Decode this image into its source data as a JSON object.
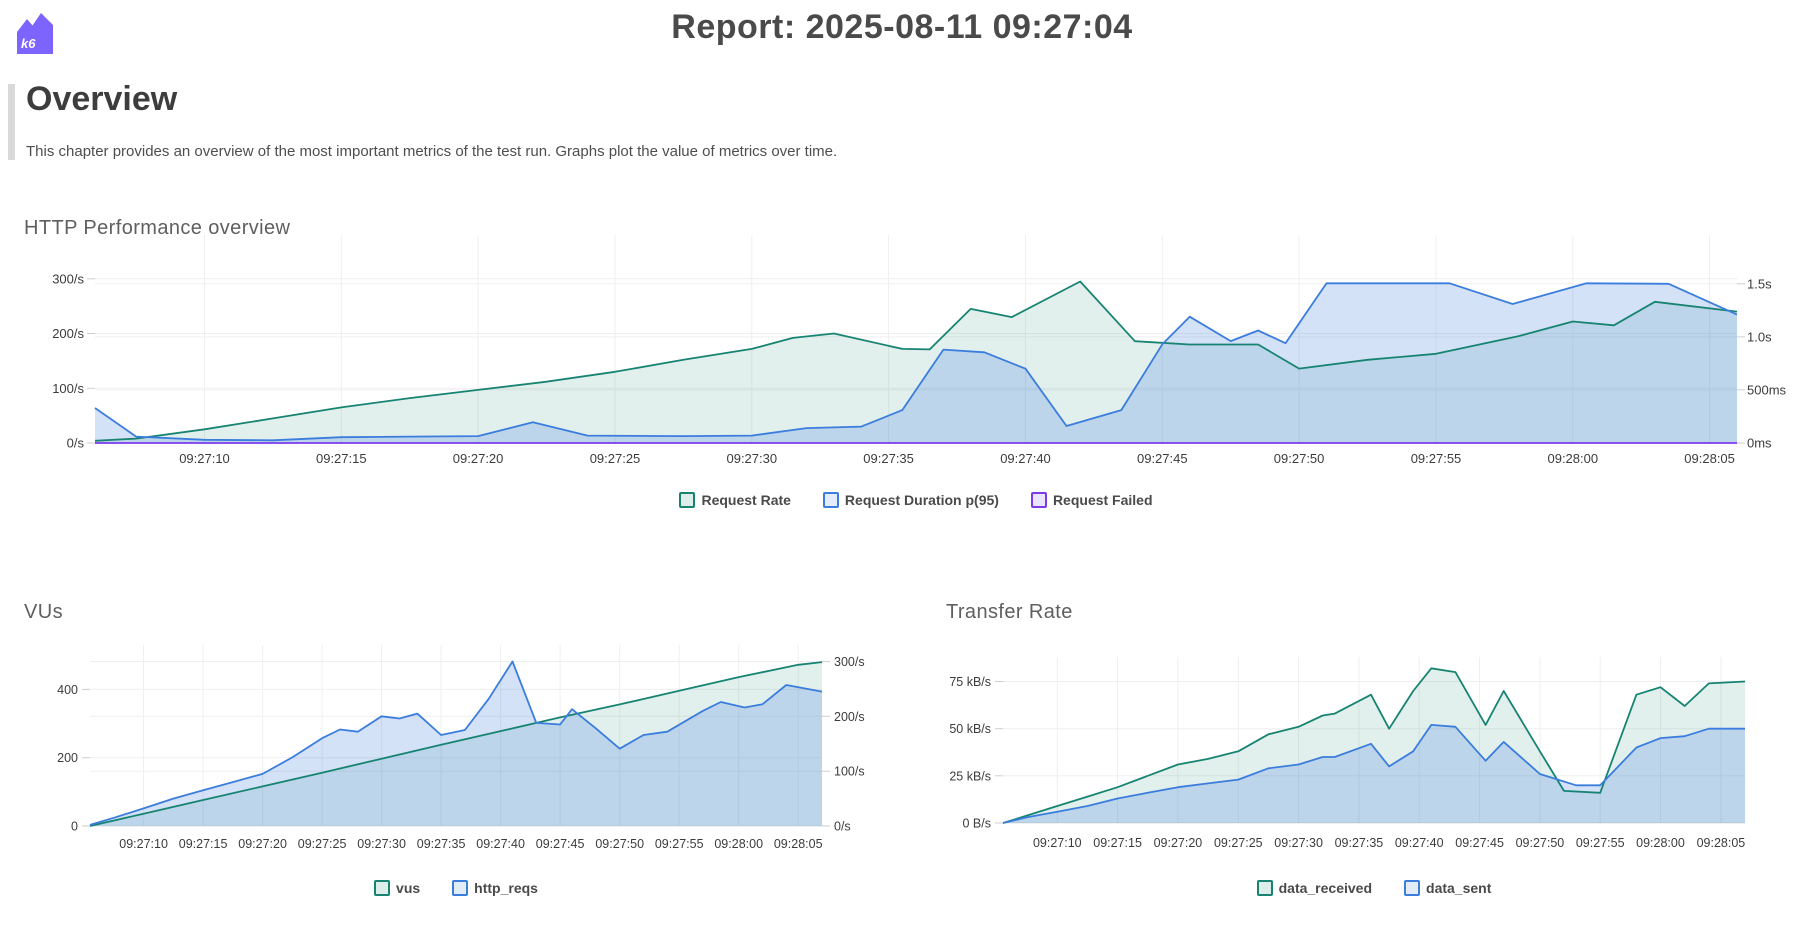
{
  "header": {
    "title": "Report: 2025-08-11 09:27:04",
    "logo_text": "k6",
    "logo_color": "#7d64ff"
  },
  "overview": {
    "heading": "Overview",
    "description": "This chapter provides an overview of the most important metrics of the test run. Graphs plot the value of metrics over time."
  },
  "colors": {
    "teal": "#178472",
    "blue": "#3b7ddd",
    "purple": "#7c3aed",
    "grid": "#efefef",
    "axis_text": "#3c3c3c"
  },
  "chart_data": [
    {
      "type": "area",
      "title": "HTTP Performance overview",
      "x_domain": [
        1,
        61
      ],
      "x_ticks": [
        {
          "t": 5,
          "label": "09:27:10"
        },
        {
          "t": 10,
          "label": "09:27:15"
        },
        {
          "t": 15,
          "label": "09:27:20"
        },
        {
          "t": 20,
          "label": "09:27:25"
        },
        {
          "t": 25,
          "label": "09:27:30"
        },
        {
          "t": 30,
          "label": "09:27:35"
        },
        {
          "t": 35,
          "label": "09:27:40"
        },
        {
          "t": 40,
          "label": "09:27:45"
        },
        {
          "t": 45,
          "label": "09:27:50"
        },
        {
          "t": 50,
          "label": "09:27:55"
        },
        {
          "t": 55,
          "label": "09:28:00"
        },
        {
          "t": 60,
          "label": "09:28:05"
        }
      ],
      "y_left": {
        "max": 380,
        "ticks": [
          {
            "label": "300/s",
            "value": 300
          },
          {
            "label": "200/s",
            "value": 200
          },
          {
            "label": "100/s",
            "value": 100
          },
          {
            "label": "0/s",
            "value": 0
          }
        ]
      },
      "y_right": {
        "max": 1960,
        "ticks": [
          {
            "label": "1.5s",
            "value": 1500
          },
          {
            "label": "1.0s",
            "value": 1000
          },
          {
            "label": "500ms",
            "value": 500
          },
          {
            "label": "0ms",
            "value": 0
          }
        ]
      },
      "series": [
        {
          "name": "Request Rate",
          "axis": "left",
          "color": "#178472",
          "fill_opacity": 0.13,
          "points": [
            [
              1,
              4
            ],
            [
              2.5,
              8
            ],
            [
              5,
              25
            ],
            [
              7.5,
              45
            ],
            [
              10,
              65
            ],
            [
              12.5,
              82
            ],
            [
              15,
              97
            ],
            [
              17.5,
              112
            ],
            [
              20,
              130
            ],
            [
              22.5,
              152
            ],
            [
              25,
              172
            ],
            [
              26.5,
              192
            ],
            [
              28,
              200
            ],
            [
              30.5,
              172
            ],
            [
              31.5,
              171
            ],
            [
              33,
              245
            ],
            [
              34.5,
              230
            ],
            [
              37,
              295
            ],
            [
              39,
              186
            ],
            [
              41,
              180
            ],
            [
              43.5,
              180
            ],
            [
              45,
              136
            ],
            [
              47.5,
              152
            ],
            [
              50,
              163
            ],
            [
              53,
              195
            ],
            [
              55,
              222
            ],
            [
              56.5,
              215
            ],
            [
              58,
              258
            ],
            [
              61,
              240
            ]
          ]
        },
        {
          "name": "Request Duration p(95)",
          "axis": "right",
          "color": "#3b7ddd",
          "fill_opacity": 0.22,
          "points": [
            [
              1,
              330
            ],
            [
              2.5,
              60
            ],
            [
              5,
              30
            ],
            [
              7.5,
              25
            ],
            [
              10,
              55
            ],
            [
              12.5,
              60
            ],
            [
              15,
              65
            ],
            [
              17,
              195
            ],
            [
              19,
              70
            ],
            [
              22.5,
              65
            ],
            [
              25,
              70
            ],
            [
              27,
              140
            ],
            [
              29,
              155
            ],
            [
              30.5,
              310
            ],
            [
              32,
              880
            ],
            [
              33.5,
              855
            ],
            [
              35,
              700
            ],
            [
              36.5,
              160
            ],
            [
              38.5,
              310
            ],
            [
              40,
              930
            ],
            [
              41,
              1190
            ],
            [
              42.5,
              960
            ],
            [
              43.5,
              1060
            ],
            [
              44.5,
              940
            ],
            [
              46,
              1505
            ],
            [
              50.5,
              1505
            ],
            [
              52.8,
              1310
            ],
            [
              55.5,
              1505
            ],
            [
              58.5,
              1500
            ],
            [
              61,
              1210
            ]
          ]
        },
        {
          "name": "Request Failed",
          "axis": "left",
          "color": "#7c3aed",
          "fill_opacity": 0,
          "points": [
            [
              1,
              0
            ],
            [
              61,
              0
            ]
          ]
        }
      ]
    },
    {
      "type": "area",
      "title": "VUs",
      "x_domain": [
        0.5,
        62
      ],
      "x_ticks": [
        {
          "t": 5,
          "label": "09:27:10"
        },
        {
          "t": 10,
          "label": "09:27:15"
        },
        {
          "t": 15,
          "label": "09:27:20"
        },
        {
          "t": 20,
          "label": "09:27:25"
        },
        {
          "t": 25,
          "label": "09:27:30"
        },
        {
          "t": 30,
          "label": "09:27:35"
        },
        {
          "t": 35,
          "label": "09:27:40"
        },
        {
          "t": 40,
          "label": "09:27:45"
        },
        {
          "t": 45,
          "label": "09:27:50"
        },
        {
          "t": 50,
          "label": "09:27:55"
        },
        {
          "t": 55,
          "label": "09:28:00"
        },
        {
          "t": 60,
          "label": "09:28:05"
        }
      ],
      "y_left": {
        "max": 530,
        "ticks": [
          {
            "label": "400",
            "value": 400
          },
          {
            "label": "200",
            "value": 200
          },
          {
            "label": "0",
            "value": 0
          }
        ]
      },
      "y_right": {
        "max": 330,
        "ticks": [
          {
            "label": "300/s",
            "value": 300
          },
          {
            "label": "200/s",
            "value": 200
          },
          {
            "label": "100/s",
            "value": 100
          },
          {
            "label": "0/s",
            "value": 0
          }
        ]
      },
      "series": [
        {
          "name": "vus",
          "axis": "left",
          "color": "#178472",
          "fill_opacity": 0.13,
          "points": [
            [
              0.5,
              0
            ],
            [
              5,
              36
            ],
            [
              10,
              76
            ],
            [
              15,
              116
            ],
            [
              20,
              156
            ],
            [
              25,
              197
            ],
            [
              30,
              238
            ],
            [
              35,
              278
            ],
            [
              40,
              318
            ],
            [
              45,
              356
            ],
            [
              50,
              396
            ],
            [
              55,
              436
            ],
            [
              60,
              472
            ],
            [
              62,
              480
            ]
          ]
        },
        {
          "name": "http_reqs",
          "axis": "right",
          "color": "#3b7ddd",
          "fill_opacity": 0.22,
          "points": [
            [
              0.5,
              2
            ],
            [
              2.5,
              15
            ],
            [
              5,
              32
            ],
            [
              7.5,
              50
            ],
            [
              10,
              65
            ],
            [
              12.5,
              80
            ],
            [
              15,
              95
            ],
            [
              17.5,
              125
            ],
            [
              20,
              160
            ],
            [
              21.5,
              176
            ],
            [
              23,
              172
            ],
            [
              25,
              200
            ],
            [
              26.5,
              196
            ],
            [
              28,
              205
            ],
            [
              30,
              166
            ],
            [
              32,
              175
            ],
            [
              34,
              232
            ],
            [
              36,
              300
            ],
            [
              38,
              188
            ],
            [
              40,
              185
            ],
            [
              41,
              213
            ],
            [
              43,
              178
            ],
            [
              45,
              141
            ],
            [
              47,
              166
            ],
            [
              49,
              172
            ],
            [
              52,
              210
            ],
            [
              53.5,
              226
            ],
            [
              55.5,
              216
            ],
            [
              57,
              222
            ],
            [
              59,
              257
            ],
            [
              62,
              245
            ]
          ]
        }
      ]
    },
    {
      "type": "area",
      "title": "Transfer Rate",
      "x_domain": [
        0.5,
        62
      ],
      "x_ticks": [
        {
          "t": 5,
          "label": "09:27:10"
        },
        {
          "t": 10,
          "label": "09:27:15"
        },
        {
          "t": 15,
          "label": "09:27:20"
        },
        {
          "t": 20,
          "label": "09:27:25"
        },
        {
          "t": 25,
          "label": "09:27:30"
        },
        {
          "t": 30,
          "label": "09:27:35"
        },
        {
          "t": 35,
          "label": "09:27:40"
        },
        {
          "t": 40,
          "label": "09:27:45"
        },
        {
          "t": 45,
          "label": "09:27:50"
        },
        {
          "t": 50,
          "label": "09:27:55"
        },
        {
          "t": 55,
          "label": "09:28:00"
        },
        {
          "t": 60,
          "label": "09:28:05"
        }
      ],
      "y_left": {
        "max": 88,
        "ticks": [
          {
            "label": "75 kB/s",
            "value": 75
          },
          {
            "label": "50 kB/s",
            "value": 50
          },
          {
            "label": "25 kB/s",
            "value": 25
          },
          {
            "label": "0 B/s",
            "value": 0
          }
        ]
      },
      "series": [
        {
          "name": "data_received",
          "axis": "left",
          "color": "#178472",
          "fill_opacity": 0.13,
          "points": [
            [
              0.5,
              0
            ],
            [
              2.5,
              4
            ],
            [
              5,
              9
            ],
            [
              7.5,
              14
            ],
            [
              10,
              19
            ],
            [
              12.5,
              25
            ],
            [
              15,
              31
            ],
            [
              17.5,
              34
            ],
            [
              20,
              38
            ],
            [
              22.5,
              47
            ],
            [
              25,
              51
            ],
            [
              27,
              57
            ],
            [
              28,
              58
            ],
            [
              31,
              68
            ],
            [
              32.5,
              50
            ],
            [
              34.5,
              70
            ],
            [
              36,
              82
            ],
            [
              38,
              80
            ],
            [
              40.5,
              52
            ],
            [
              42,
              70
            ],
            [
              45,
              38
            ],
            [
              47,
              17
            ],
            [
              50,
              16
            ],
            [
              53,
              68
            ],
            [
              55,
              72
            ],
            [
              57,
              62
            ],
            [
              59,
              74
            ],
            [
              62,
              75
            ]
          ]
        },
        {
          "name": "data_sent",
          "axis": "left",
          "color": "#3b7ddd",
          "fill_opacity": 0.22,
          "points": [
            [
              0.5,
              0
            ],
            [
              2.5,
              3
            ],
            [
              5,
              6
            ],
            [
              7.5,
              9
            ],
            [
              10,
              13
            ],
            [
              12.5,
              16
            ],
            [
              15,
              19
            ],
            [
              17.5,
              21
            ],
            [
              20,
              23
            ],
            [
              22.5,
              29
            ],
            [
              25,
              31
            ],
            [
              27,
              35
            ],
            [
              28,
              35
            ],
            [
              31,
              42
            ],
            [
              32.5,
              30
            ],
            [
              34.5,
              38
            ],
            [
              36,
              52
            ],
            [
              38,
              51
            ],
            [
              40.5,
              33
            ],
            [
              42,
              43
            ],
            [
              45,
              26
            ],
            [
              48,
              20
            ],
            [
              50,
              20
            ],
            [
              53,
              40
            ],
            [
              55,
              45
            ],
            [
              57,
              46
            ],
            [
              59,
              50
            ],
            [
              62,
              50
            ]
          ]
        }
      ]
    }
  ]
}
